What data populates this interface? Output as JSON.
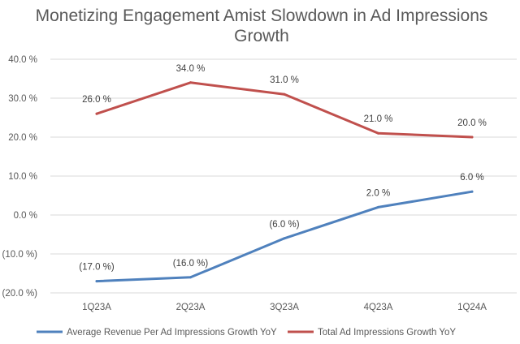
{
  "chart_data": {
    "type": "line",
    "title": [
      "Monetizing Engagement Amist Slowdown in Ad Impressions",
      "Growth"
    ],
    "categories": [
      "1Q23A",
      "2Q23A",
      "3Q23A",
      "4Q23A",
      "1Q24A"
    ],
    "ylim": [
      -20,
      40
    ],
    "yticks": [
      40,
      30,
      20,
      10,
      0,
      -10,
      -20
    ],
    "ytick_labels": [
      "40.0 %",
      "30.0 %",
      "20.0 %",
      "10.0 %",
      "0.0 %",
      "(10.0 %)",
      "(20.0 %)"
    ],
    "xlabel": "",
    "ylabel": "",
    "grid": true,
    "legend_position": "bottom",
    "series": [
      {
        "name": "Average Revenue Per Ad Impressions Growth YoY",
        "color": "#4f81bd",
        "values": [
          -17,
          -16,
          -6,
          2,
          6
        ],
        "labels": [
          "(17.0 %)",
          "(16.0 %)",
          "(6.0 %)",
          "2.0 %",
          "6.0 %"
        ]
      },
      {
        "name": "Total Ad Impressions Growth YoY",
        "color": "#c0504d",
        "values": [
          26,
          34,
          31,
          21,
          20
        ],
        "labels": [
          "26.0 %",
          "34.0 %",
          "31.0 %",
          "21.0 %",
          "20.0 %"
        ]
      }
    ]
  }
}
